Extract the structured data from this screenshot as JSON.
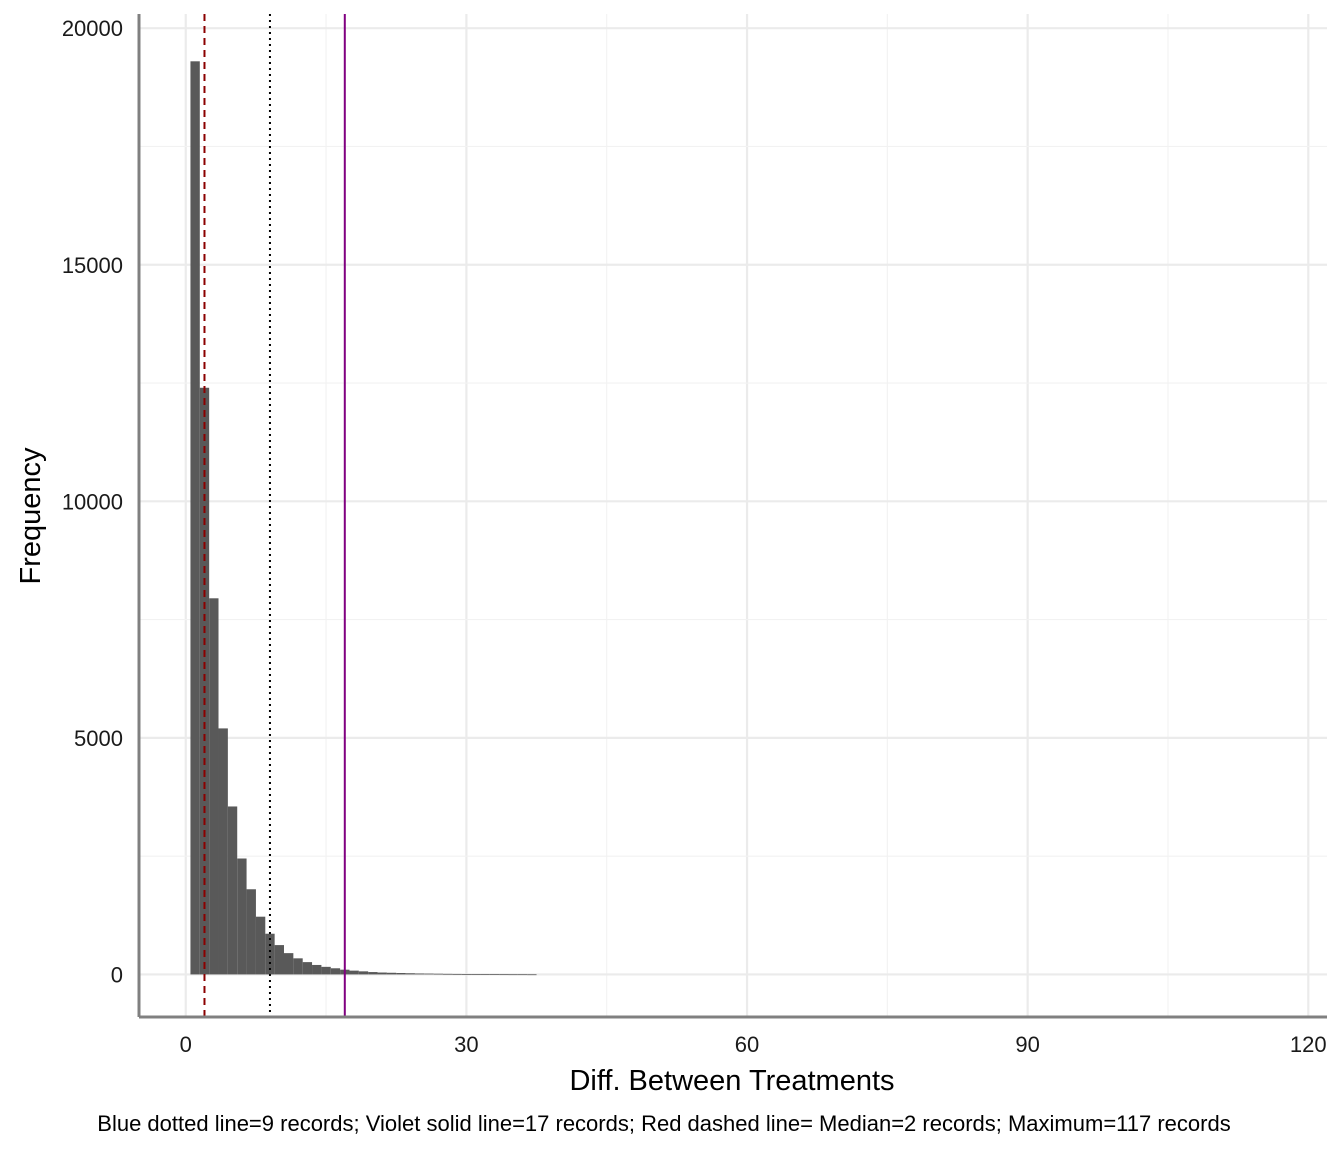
{
  "chart_data": {
    "type": "histogram",
    "title": "",
    "xlabel": "Diff. Between Treatments",
    "ylabel": "Frequency",
    "caption": "Blue dotted line=9 records; Violet solid line=17 records; Red dashed line= Median=2 records; Maximum=117 records",
    "xlim": [
      -5,
      122
    ],
    "ylim": [
      -900,
      20300
    ],
    "x_ticks": [
      0,
      30,
      60,
      90,
      120
    ],
    "x_tick_labels": [
      "0",
      "30",
      "60",
      "90",
      "120"
    ],
    "y_ticks": [
      0,
      5000,
      10000,
      15000,
      20000
    ],
    "y_tick_labels": [
      "0",
      "5000",
      "10000",
      "15000",
      "20000"
    ],
    "bin_width": 1,
    "bins": [
      {
        "x0": 0.5,
        "count": 19300
      },
      {
        "x0": 1.5,
        "count": 12400
      },
      {
        "x0": 2.5,
        "count": 7950
      },
      {
        "x0": 3.5,
        "count": 5200
      },
      {
        "x0": 4.5,
        "count": 3550
      },
      {
        "x0": 5.5,
        "count": 2450
      },
      {
        "x0": 6.5,
        "count": 1800
      },
      {
        "x0": 7.5,
        "count": 1220
      },
      {
        "x0": 8.5,
        "count": 860
      },
      {
        "x0": 9.5,
        "count": 620
      },
      {
        "x0": 10.5,
        "count": 450
      },
      {
        "x0": 11.5,
        "count": 340
      },
      {
        "x0": 12.5,
        "count": 260
      },
      {
        "x0": 13.5,
        "count": 200
      },
      {
        "x0": 14.5,
        "count": 160
      },
      {
        "x0": 15.5,
        "count": 130
      },
      {
        "x0": 16.5,
        "count": 100
      },
      {
        "x0": 17.5,
        "count": 80
      },
      {
        "x0": 18.5,
        "count": 65
      },
      {
        "x0": 19.5,
        "count": 50
      },
      {
        "x0": 20.5,
        "count": 40
      },
      {
        "x0": 21.5,
        "count": 35
      },
      {
        "x0": 22.5,
        "count": 30
      },
      {
        "x0": 23.5,
        "count": 25
      },
      {
        "x0": 24.5,
        "count": 20
      },
      {
        "x0": 25.5,
        "count": 18
      },
      {
        "x0": 26.5,
        "count": 15
      },
      {
        "x0": 27.5,
        "count": 12
      },
      {
        "x0": 28.5,
        "count": 10
      },
      {
        "x0": 29.5,
        "count": 9
      },
      {
        "x0": 30.5,
        "count": 8
      },
      {
        "x0": 31.5,
        "count": 6
      },
      {
        "x0": 32.5,
        "count": 5
      },
      {
        "x0": 33.5,
        "count": 4
      },
      {
        "x0": 34.5,
        "count": 3
      },
      {
        "x0": 35.5,
        "count": 3
      },
      {
        "x0": 36.5,
        "count": 2
      }
    ],
    "reference_lines": [
      {
        "x": 2,
        "style": "dashed",
        "color": "#8b0000"
      },
      {
        "x": 9,
        "style": "dotted",
        "color": "#000000"
      },
      {
        "x": 17,
        "style": "solid",
        "color": "#800080"
      }
    ],
    "bar_color": "#595959",
    "grid": true
  }
}
